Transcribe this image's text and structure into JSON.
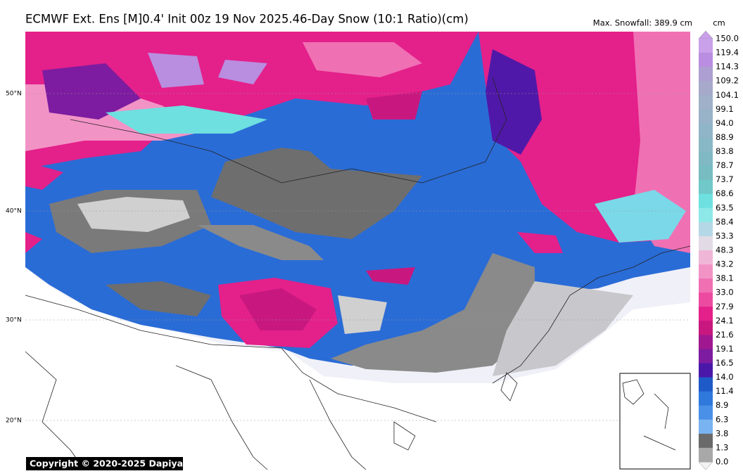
{
  "header": {
    "title": "ECMWF Ext. Ens [M]0.4' Init 00z 19 Nov 2025.46-Day Snow (10:1 Ratio)(cm)",
    "max_snowfall": "Max. Snowfall: 389.9 cm"
  },
  "colorbar": {
    "unit": "cm",
    "levels": [
      "150.0",
      "119.4",
      "114.3",
      "109.2",
      "104.1",
      "99.1",
      "94.0",
      "88.9",
      "83.8",
      "78.7",
      "73.7",
      "68.6",
      "63.5",
      "58.4",
      "53.3",
      "48.3",
      "43.2",
      "38.1",
      "33.0",
      "27.9",
      "24.1",
      "21.6",
      "19.1",
      "16.5",
      "14.0",
      "11.4",
      "8.9",
      "6.3",
      "3.8",
      "1.3",
      "0.0"
    ],
    "colors": [
      "#c9a0ea",
      "#b98de0",
      "#ad9fd2",
      "#a6a9c9",
      "#9fb0c8",
      "#98b2c8",
      "#90b5c8",
      "#88b7c5",
      "#80b9c3",
      "#77bcc0",
      "#70c8c8",
      "#6ee0e0",
      "#8ee8e8",
      "#b5d8e6",
      "#e2dbe6",
      "#f0b6d8",
      "#f293c6",
      "#f070b4",
      "#ec4aa0",
      "#e4208a",
      "#c81880",
      "#a01890",
      "#7d1ca0",
      "#4a18a8",
      "#1e5ac8",
      "#2f78dc",
      "#4a90e8",
      "#7ab4f0",
      "#6a6a6a",
      "#a8a8a8"
    ]
  },
  "lat_labels": [
    "50°N",
    "40°N",
    "30°N",
    "20°N"
  ],
  "copyright": "Copyright © 2020-2025 Dapiya"
}
